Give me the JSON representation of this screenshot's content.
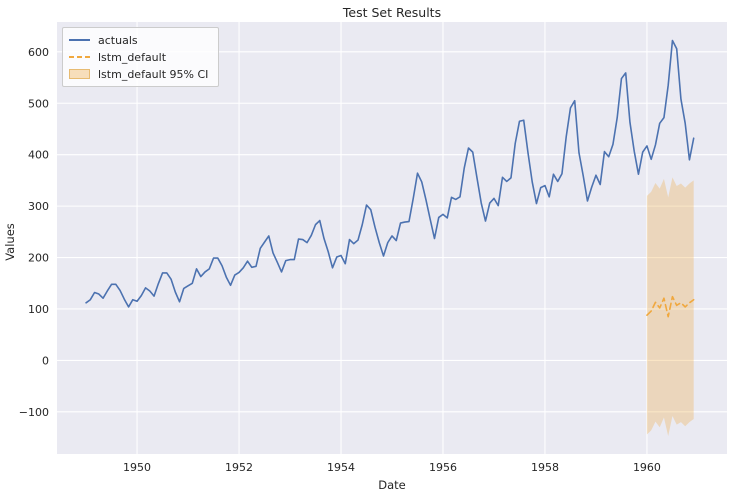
{
  "figure": {
    "title": "Test Set Results",
    "xlabel": "Date",
    "ylabel": "Values"
  },
  "legend": {
    "position": "upper-left",
    "items": [
      {
        "label": "actuals",
        "swatch": "solid-line",
        "color": "#4c72b0"
      },
      {
        "label": "lstm_default",
        "swatch": "dashed-line",
        "color": "#f0a83e"
      },
      {
        "label": "lstm_default 95% CI",
        "swatch": "filled-patch",
        "color": "#f0a83e"
      }
    ]
  },
  "chart_data": {
    "type": "line",
    "title": "Test Set Results",
    "xlabel": "Date",
    "ylabel": "Values",
    "grid": true,
    "background": "#eaeaf2",
    "grid_color": "#ffffff",
    "text_color": "#262626",
    "xlim": [
      1948.43,
      1961.57
    ],
    "ylim": [
      -182,
      658
    ],
    "xticks": {
      "values": [
        1950,
        1952,
        1954,
        1956,
        1958,
        1960
      ],
      "labels": [
        "1950",
        "1952",
        "1954",
        "1956",
        "1958",
        "1960"
      ]
    },
    "yticks": {
      "values": [
        -100,
        0,
        100,
        200,
        300,
        400,
        500,
        600
      ],
      "labels": [
        "−100",
        "0",
        "100",
        "200",
        "300",
        "400",
        "500",
        "600"
      ]
    },
    "series": [
      {
        "name": "actuals",
        "type": "line",
        "color": "#4c72b0",
        "x_start": 1949.0,
        "x_step_months": 1,
        "values": [
          112,
          118,
          132,
          129,
          121,
          135,
          148,
          148,
          136,
          119,
          104,
          118,
          115,
          126,
          141,
          135,
          125,
          149,
          170,
          170,
          158,
          133,
          114,
          140,
          145,
          150,
          178,
          163,
          172,
          178,
          199,
          199,
          184,
          162,
          146,
          166,
          171,
          180,
          193,
          181,
          183,
          218,
          230,
          242,
          209,
          191,
          172,
          194,
          196,
          196,
          236,
          235,
          229,
          243,
          264,
          272,
          237,
          211,
          180,
          201,
          204,
          188,
          235,
          227,
          234,
          264,
          302,
          293,
          259,
          229,
          203,
          229,
          242,
          233,
          267,
          269,
          270,
          315,
          364,
          347,
          312,
          274,
          237,
          278,
          284,
          277,
          317,
          313,
          318,
          374,
          413,
          405,
          355,
          306,
          271,
          306,
          315,
          301,
          356,
          348,
          355,
          422,
          465,
          467,
          404,
          347,
          305,
          336,
          340,
          318,
          362,
          348,
          363,
          435,
          491,
          505,
          404,
          359,
          310,
          337,
          360,
          342,
          406,
          396,
          420,
          472,
          548,
          559,
          463,
          407,
          362,
          405,
          417,
          391,
          419,
          461,
          472,
          535,
          622,
          606,
          508,
          461,
          390,
          432
        ]
      },
      {
        "name": "lstm_default",
        "type": "dashed-line",
        "color": "#f0a83e",
        "x_start": 1960.0,
        "x_step_months": 1,
        "values": [
          88,
          96,
          113,
          102,
          121,
          85,
          124,
          107,
          112,
          104,
          112,
          118
        ]
      },
      {
        "name": "lstm_default 95% CI",
        "type": "band",
        "color": "#f0a83e",
        "fill_opacity": 0.3,
        "x_start": 1960.0,
        "x_step_months": 1,
        "upper": [
          320,
          328,
          345,
          334,
          353,
          317,
          356,
          339,
          344,
          336,
          344,
          350
        ],
        "lower": [
          -144,
          -136,
          -119,
          -130,
          -111,
          -147,
          -108,
          -125,
          -120,
          -128,
          -120,
          -114
        ]
      }
    ]
  }
}
